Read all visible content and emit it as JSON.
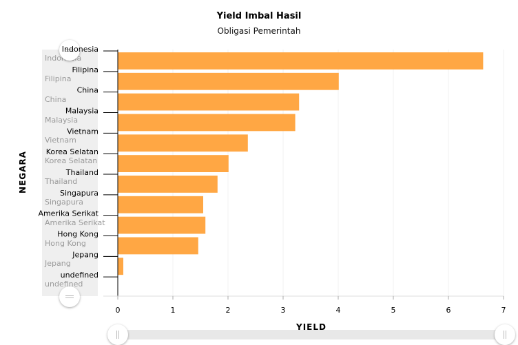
{
  "chart_data": {
    "type": "bar",
    "orientation": "horizontal",
    "title": "Yield Imbal Hasil",
    "subtitle": "Obligasi Pemerintah",
    "xlabel": "YIELD",
    "ylabel": "NEGARA",
    "xlim": [
      0,
      7
    ],
    "xticks": [
      0,
      1,
      2,
      3,
      4,
      5,
      6,
      7
    ],
    "categories": [
      "Indonesia",
      "Filipina",
      "China",
      "Malaysia",
      "Vietnam",
      "Korea Selatan",
      "Thailand",
      "Singapura",
      "Amerika Serikat",
      "Hong Kong",
      "Jepang",
      "undefined"
    ],
    "values": [
      6.63,
      4.01,
      3.29,
      3.22,
      2.36,
      2.01,
      1.81,
      1.55,
      1.59,
      1.46,
      0.1,
      0
    ],
    "bar_color": "#ffa23a",
    "grid": true
  }
}
